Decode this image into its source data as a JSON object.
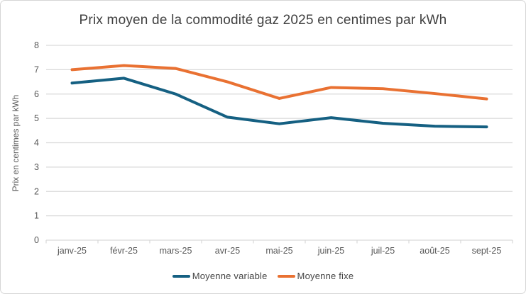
{
  "chart_data": {
    "type": "line",
    "title": "Prix moyen de la commodité gaz 2025 en centimes par kWh",
    "xlabel": "",
    "ylabel": "Prix en centimes par kWh",
    "categories": [
      "janv-25",
      "févr-25",
      "mars-25",
      "avr-25",
      "mai-25",
      "juin-25",
      "juil-25",
      "août-25",
      "sept-25"
    ],
    "series": [
      {
        "name": "Moyenne variable",
        "color": "#156082",
        "values": [
          6.45,
          6.65,
          6.0,
          5.05,
          4.78,
          5.03,
          4.8,
          4.68,
          4.65
        ]
      },
      {
        "name": "Moyenne fixe",
        "color": "#E97132",
        "values": [
          7.0,
          7.17,
          7.05,
          6.5,
          5.82,
          6.27,
          6.22,
          6.02,
          5.8
        ]
      }
    ],
    "ylim": [
      0,
      8
    ],
    "yticks": [
      0,
      1,
      2,
      3,
      4,
      5,
      6,
      7,
      8
    ],
    "grid": "horizontal",
    "legend_position": "bottom",
    "colors": {
      "gridline": "#d9d9d9",
      "axis_line": "#d9d9d9",
      "tick_label": "#595959",
      "title_text": "#404040"
    }
  }
}
